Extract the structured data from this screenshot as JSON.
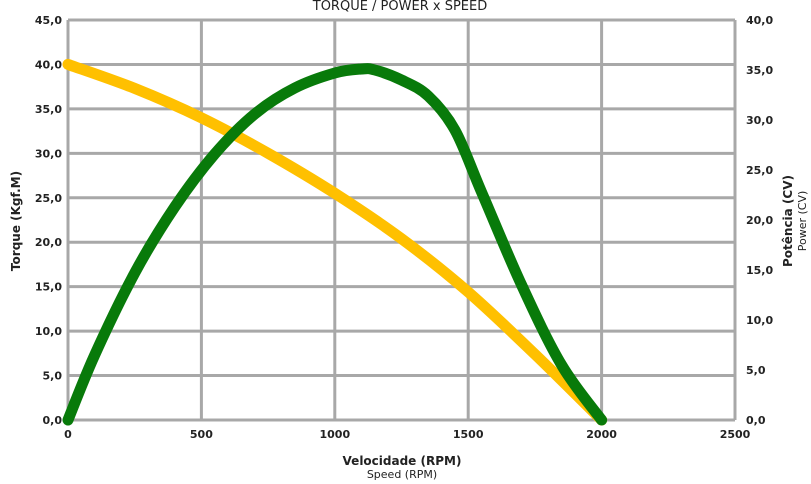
{
  "chart_data": {
    "type": "line",
    "title": "TORQUE / POWER x SPEED",
    "xlabel": "Velocidade (RPM)",
    "xlabel_sub": "Speed (RPM)",
    "ylabel_left": "Torque (Kgf.M)",
    "ylabel_right": "Potência (CV)",
    "ylabel_right_sub": "Power (CV)",
    "xlim": [
      0,
      2500
    ],
    "ylim_left": [
      0,
      45
    ],
    "ylim_right": [
      0,
      40
    ],
    "x_ticks": [
      "0",
      "500",
      "1000",
      "1500",
      "2000",
      "2500"
    ],
    "y_left_ticks": [
      "0,0",
      "5,0",
      "10,0",
      "15,0",
      "20,0",
      "25,0",
      "30,0",
      "35,0",
      "40,0",
      "45,0"
    ],
    "y_right_ticks": [
      "0,0",
      "5,0",
      "10,0",
      "15,0",
      "20,0",
      "25,0",
      "30,0",
      "35,0",
      "40,0"
    ],
    "grid": true,
    "series": [
      {
        "axis": "left",
        "color": "#FFC000",
        "x": [
          0,
          250,
          500,
          750,
          1000,
          1250,
          1500,
          1750,
          2000
        ],
        "values": [
          40.0,
          37.3,
          34.0,
          30.0,
          25.5,
          20.4,
          14.4,
          7.4,
          0.0
        ]
      },
      {
        "axis": "right",
        "color": "#087A0A",
        "x": [
          0,
          100,
          250,
          400,
          550,
          700,
          850,
          1000,
          1100,
          1150,
          1250,
          1350,
          1450,
          1550,
          1700,
          1850,
          2000
        ],
        "values": [
          0.0,
          6.5,
          14.7,
          21.3,
          26.6,
          30.6,
          33.2,
          34.7,
          35.1,
          35.0,
          34.0,
          32.4,
          29.0,
          22.8,
          13.5,
          5.5,
          0.0
        ]
      }
    ]
  }
}
